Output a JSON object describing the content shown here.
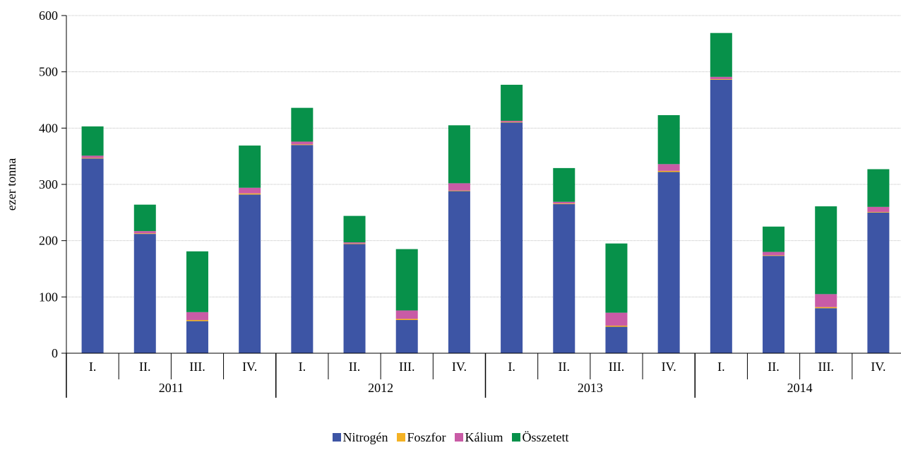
{
  "chart_data": {
    "type": "stacked-bar",
    "ylabel": "ezer tonna",
    "ylim": [
      0,
      600
    ],
    "yticks": [
      0,
      100,
      200,
      300,
      400,
      500,
      600
    ],
    "grid": true,
    "legend_position": "bottom",
    "groups": [
      {
        "label": "2011",
        "categories": [
          "I.",
          "II.",
          "III.",
          "IV."
        ]
      },
      {
        "label": "2012",
        "categories": [
          "I.",
          "II.",
          "III.",
          "IV."
        ]
      },
      {
        "label": "2013",
        "categories": [
          "I.",
          "II.",
          "III.",
          "IV."
        ]
      },
      {
        "label": "2014",
        "categories": [
          "I.",
          "II.",
          "III.",
          "IV."
        ]
      }
    ],
    "series": [
      {
        "name": "Nitrogén",
        "color": "#3d55a5",
        "values": [
          346,
          212,
          57,
          282,
          370,
          194,
          59,
          288,
          410,
          265,
          47,
          322,
          486,
          173,
          80,
          250
        ]
      },
      {
        "name": "Foszfor",
        "color": "#f4b224",
        "values": [
          1,
          1,
          2,
          2,
          1,
          1,
          2,
          1,
          1,
          1,
          2,
          2,
          1,
          1,
          2,
          1
        ]
      },
      {
        "name": "Kálium",
        "color": "#c95ba6",
        "values": [
          4,
          4,
          14,
          10,
          5,
          2,
          15,
          13,
          2,
          3,
          23,
          12,
          4,
          6,
          23,
          9
        ]
      },
      {
        "name": "Összetett",
        "color": "#07914a",
        "values": [
          52,
          47,
          108,
          75,
          60,
          47,
          109,
          103,
          64,
          60,
          123,
          87,
          78,
          45,
          156,
          67
        ]
      }
    ]
  }
}
